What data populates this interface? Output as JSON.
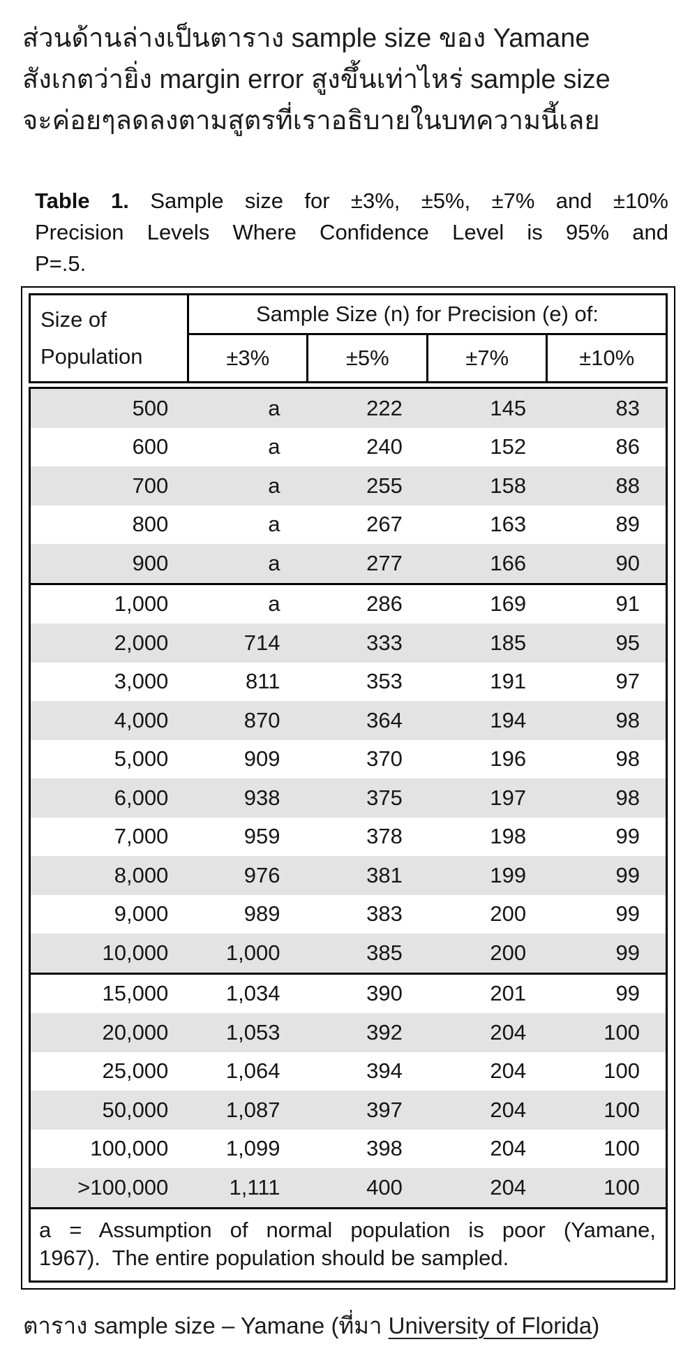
{
  "intro": {
    "text": "ส่วนด้านล่างเป็นตาราง sample size ของ Yamane\nสังเกตว่ายิ่ง margin error สูงขึ้นเท่าไหร่ sample size\nจะค่อยๆลดลงตามสูตรที่เราอธิบายในบทความนี้เลย"
  },
  "table": {
    "title": {
      "label": "Table 1.",
      "line1_rest": "Sample size for ±3%, ±5%, ±7% and ±10%",
      "line2": "Precision Levels Where Confidence Level is 95% and",
      "line3": "P=.5."
    },
    "header": {
      "col1": "Size of\nPopulation",
      "span": "Sample Size (n) for Precision (e) of:",
      "precisions": [
        "±3%",
        "±5%",
        "±7%",
        "±10%"
      ]
    },
    "columns": [
      "Size of Population",
      "±3%",
      "±5%",
      "±7%",
      "±10%"
    ],
    "rows": [
      [
        "500",
        "a",
        "222",
        "145",
        "83"
      ],
      [
        "600",
        "a",
        "240",
        "152",
        "86"
      ],
      [
        "700",
        "a",
        "255",
        "158",
        "88"
      ],
      [
        "800",
        "a",
        "267",
        "163",
        "89"
      ],
      [
        "900",
        "a",
        "277",
        "166",
        "90"
      ],
      [
        "1,000",
        "a",
        "286",
        "169",
        "91"
      ],
      [
        "2,000",
        "714",
        "333",
        "185",
        "95"
      ],
      [
        "3,000",
        "811",
        "353",
        "191",
        "97"
      ],
      [
        "4,000",
        "870",
        "364",
        "194",
        "98"
      ],
      [
        "5,000",
        "909",
        "370",
        "196",
        "98"
      ],
      [
        "6,000",
        "938",
        "375",
        "197",
        "98"
      ],
      [
        "7,000",
        "959",
        "378",
        "198",
        "99"
      ],
      [
        "8,000",
        "976",
        "381",
        "199",
        "99"
      ],
      [
        "9,000",
        "989",
        "383",
        "200",
        "99"
      ],
      [
        "10,000",
        "1,000",
        "385",
        "200",
        "99"
      ],
      [
        "15,000",
        "1,034",
        "390",
        "201",
        "99"
      ],
      [
        "20,000",
        "1,053",
        "392",
        "204",
        "100"
      ],
      [
        "25,000",
        "1,064",
        "394",
        "204",
        "100"
      ],
      [
        "50,000",
        "1,087",
        "397",
        "204",
        "100"
      ],
      [
        "100,000",
        "1,099",
        "398",
        "204",
        "100"
      ],
      [
        ">100,000",
        "1,111",
        "400",
        "204",
        "100"
      ]
    ],
    "group_start_indexes": [
      5,
      15
    ],
    "first_row_striped": true,
    "footnote": {
      "line1": "a = Assumption of normal population is poor (Yamane,",
      "line2": "1967).  The entire population should be sampled."
    },
    "colors": {
      "stripe": "#e3e3e3",
      "border": "#000000",
      "text": "#1a1a1a"
    }
  },
  "caption": {
    "prefix": "ตาราง sample size – Yamane (ที่มา ",
    "link": "University of Florida",
    "suffix": ")"
  }
}
